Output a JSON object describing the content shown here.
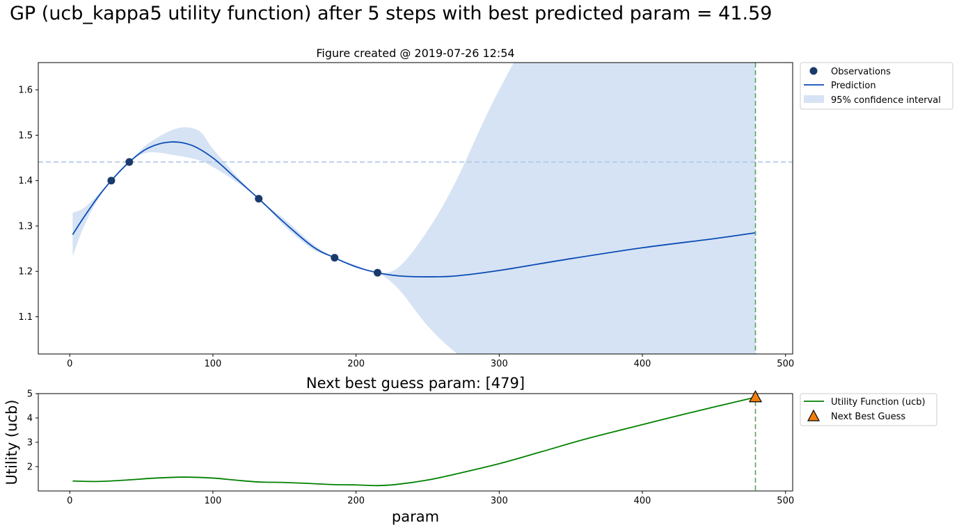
{
  "figure": {
    "suptitle": "GP (ucb_kappa5 utility function) after 5 steps with best predicted param = 41.59"
  },
  "chart_data": [
    {
      "type": "line",
      "title": "Figure created @ 2019-07-26 12:54",
      "xlabel": "",
      "ylabel": "",
      "xlim": [
        -22,
        505
      ],
      "ylim": [
        1.018,
        1.66
      ],
      "xticks": [
        0,
        100,
        200,
        300,
        400,
        500
      ],
      "yticks": [
        1.1,
        1.2,
        1.3,
        1.4,
        1.5,
        1.6
      ],
      "grid": false,
      "legend_position": "outside-upper-right",
      "observations": {
        "name": "Observations",
        "x": [
          29,
          41.59,
          132,
          185,
          215
        ],
        "y": [
          1.4,
          1.441,
          1.36,
          1.23,
          1.197
        ]
      },
      "prediction": {
        "name": "Prediction",
        "x": [
          2,
          10,
          20,
          29,
          41.59,
          55,
          70,
          85,
          100,
          115,
          132,
          150,
          170,
          185,
          200,
          215,
          230,
          250,
          270,
          300,
          350,
          400,
          450,
          479
        ],
        "y": [
          1.281,
          1.32,
          1.365,
          1.4,
          1.441,
          1.472,
          1.485,
          1.478,
          1.45,
          1.408,
          1.36,
          1.307,
          1.254,
          1.23,
          1.21,
          1.197,
          1.19,
          1.188,
          1.19,
          1.202,
          1.228,
          1.252,
          1.272,
          1.285
        ]
      },
      "confidence_interval": {
        "name": "95% confidence interval",
        "x": [
          2,
          10,
          20,
          29,
          41.59,
          55,
          75,
          90,
          100,
          115,
          132,
          150,
          170,
          185,
          200,
          215,
          230,
          250,
          270,
          300,
          350,
          400,
          450,
          479
        ],
        "lower": [
          1.233,
          1.3,
          1.36,
          1.4,
          1.441,
          1.462,
          1.455,
          1.445,
          1.43,
          1.4,
          1.36,
          1.3,
          1.248,
          1.23,
          1.208,
          1.197,
          1.16,
          1.08,
          1.02,
          0.95,
          0.88,
          0.82,
          0.76,
          0.73
        ],
        "upper": [
          1.329,
          1.34,
          1.37,
          1.4,
          1.441,
          1.482,
          1.515,
          1.51,
          1.47,
          1.416,
          1.36,
          1.315,
          1.26,
          1.23,
          1.214,
          1.197,
          1.21,
          1.29,
          1.4,
          1.6,
          1.88,
          2.1,
          2.3,
          2.4
        ]
      },
      "best_observed_line": {
        "y": 1.441,
        "color": "#aec7e8",
        "style": "dashed"
      },
      "next_guess_line": {
        "x": 479,
        "color": "#5aa05a",
        "style": "dashed"
      },
      "colors": {
        "observations": "#1a3a6b",
        "prediction": "#0a4bb5",
        "ci": "#d6e3f4"
      }
    },
    {
      "type": "line",
      "title": "Next best guess param: [479]",
      "xlabel": "param",
      "ylabel": "Utility (ucb)",
      "xlim": [
        -22,
        505
      ],
      "ylim": [
        1.0,
        5.0
      ],
      "xticks": [
        0,
        100,
        200,
        300,
        400,
        500
      ],
      "yticks": [
        2,
        3,
        4,
        5
      ],
      "grid": false,
      "legend_position": "outside-upper-right",
      "utility": {
        "name": "Utility Function (ucb)",
        "x": [
          2,
          20,
          40,
          60,
          80,
          100,
          115,
          132,
          150,
          170,
          185,
          200,
          215,
          230,
          250,
          270,
          300,
          330,
          360,
          390,
          420,
          450,
          479
        ],
        "y": [
          1.41,
          1.39,
          1.45,
          1.53,
          1.57,
          1.53,
          1.45,
          1.37,
          1.35,
          1.3,
          1.26,
          1.25,
          1.22,
          1.28,
          1.45,
          1.7,
          2.12,
          2.62,
          3.13,
          3.58,
          4.02,
          4.45,
          4.85
        ]
      },
      "next_best_guess": {
        "name": "Next Best Guess",
        "x": 479,
        "y": 4.85
      },
      "next_guess_line": {
        "x": 479,
        "color": "#5aa05a",
        "style": "dashed"
      },
      "colors": {
        "utility": "#008000",
        "marker_fill": "#f07f0e",
        "marker_edge": "#000000"
      }
    }
  ]
}
